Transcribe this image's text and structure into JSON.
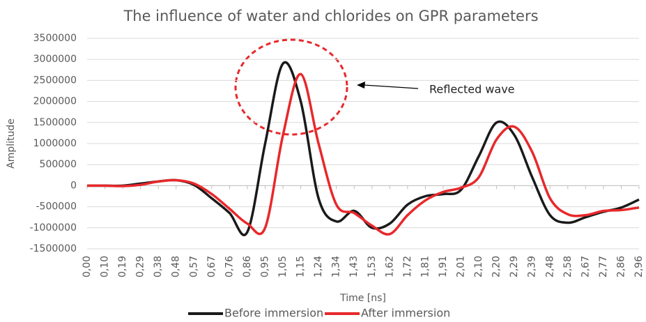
{
  "chart_data": {
    "type": "line",
    "title": "The influence of water and chlorides on GPR parameters",
    "x_label": "Time [ns]",
    "y_label": "Amplitude",
    "annotation": "Reflected wave",
    "categories": [
      "0,00",
      "0,10",
      "0,19",
      "0,29",
      "0,38",
      "0,48",
      "0,57",
      "0,67",
      "0,76",
      "0,86",
      "0,95",
      "1,05",
      "1,15",
      "1,24",
      "1,34",
      "1,43",
      "1,53",
      "1,62",
      "1,72",
      "1,81",
      "1,91",
      "2,01",
      "2,10",
      "2,20",
      "2,29",
      "2,39",
      "2,48",
      "2,58",
      "2,67",
      "2,77",
      "2,86",
      "2,96"
    ],
    "series": [
      {
        "name": "Before immersion",
        "color": "#1a1a1a",
        "values": [
          0,
          0,
          0,
          50000,
          100000,
          130000,
          20000,
          -300000,
          -650000,
          -1100000,
          1000000,
          2900000,
          2000000,
          -300000,
          -850000,
          -600000,
          -1000000,
          -900000,
          -450000,
          -250000,
          -200000,
          -100000,
          700000,
          1500000,
          1200000,
          200000,
          -700000,
          -880000,
          -750000,
          -620000,
          -520000,
          -330000
        ]
      },
      {
        "name": "After immersion",
        "color": "#e8282b",
        "values": [
          0,
          0,
          -10000,
          20000,
          100000,
          130000,
          50000,
          -200000,
          -550000,
          -900000,
          -1000000,
          1200000,
          2650000,
          1000000,
          -450000,
          -650000,
          -950000,
          -1150000,
          -700000,
          -350000,
          -150000,
          -50000,
          200000,
          1100000,
          1400000,
          800000,
          -300000,
          -680000,
          -700000,
          -600000,
          -580000,
          -520000
        ]
      }
    ],
    "ylim": [
      -1500000,
      3500000
    ],
    "yticks": [
      -1500000,
      -1000000,
      -500000,
      0,
      500000,
      1000000,
      1500000,
      2000000,
      2500000,
      3000000,
      3500000
    ],
    "grid": true,
    "legend": "bottom"
  }
}
